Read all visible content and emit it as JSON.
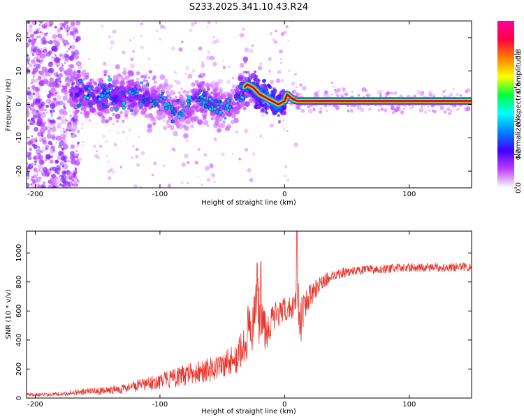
{
  "title": "S233.2025.341.10.43.R24",
  "chart_data": [
    {
      "type": "heatmap",
      "xlabel": "Height of straight line (km)",
      "ylabel": "Frequency (Hz)",
      "xlim": [
        -207,
        150
      ],
      "ylim": [
        -25,
        25
      ],
      "x_ticks": [
        -200,
        -100,
        0,
        100
      ],
      "y_ticks": [
        -20,
        -10,
        0,
        10,
        20
      ],
      "colorbar": {
        "label": "Normalized spectral amplitude",
        "range": [
          0,
          1
        ],
        "ticks": [
          0.0,
          0.2,
          0.4,
          0.6,
          0.8
        ],
        "tick_labels": [
          "0.0",
          "0.2",
          "0.4",
          "0.6",
          "0.8"
        ],
        "colors": [
          "#ffffff",
          "#c040ff",
          "#4000ff",
          "#0080ff",
          "#00ffff",
          "#00ff40",
          "#ffff00",
          "#ff8000",
          "#ff0040",
          "#ff00a0"
        ]
      },
      "ridge_trace": {
        "description": "dominant frequency ridge (Hz) vs height (km)",
        "x": [
          -170,
          -160,
          -150,
          -140,
          -130,
          -120,
          -110,
          -100,
          -90,
          -80,
          -70,
          -60,
          -50,
          -40,
          -35,
          -30,
          -25,
          -20,
          -15,
          -10,
          -5,
          0,
          2,
          5,
          10,
          20,
          40,
          60,
          80,
          100,
          120,
          150
        ],
        "y": [
          4,
          3,
          2,
          3,
          2,
          3,
          2,
          1,
          -1,
          -2,
          2,
          1,
          -1,
          0,
          4,
          6,
          5,
          3,
          2,
          1,
          0,
          1,
          3,
          2,
          1,
          1,
          1,
          1,
          1,
          1,
          1,
          1
        ],
        "amplitude": [
          0.2,
          0.2,
          0.2,
          0.25,
          0.2,
          0.2,
          0.2,
          0.15,
          0.15,
          0.15,
          0.2,
          0.2,
          0.15,
          0.15,
          0.25,
          0.3,
          0.4,
          0.45,
          0.5,
          0.5,
          0.4,
          0.35,
          0.4,
          0.55,
          0.7,
          0.75,
          0.8,
          0.85,
          0.9,
          0.95,
          0.95,
          0.95
        ]
      }
    },
    {
      "type": "line",
      "xlabel": "Height of straight line (km)",
      "ylabel": "SNR (10 * v/v)",
      "xlim": [
        -207,
        150
      ],
      "ylim": [
        0,
        1150
      ],
      "x_ticks": [
        -200,
        -100,
        0,
        100
      ],
      "y_ticks": [
        0,
        200,
        400,
        600,
        800,
        1000
      ],
      "series": [
        {
          "name": "SNR",
          "color": "#e8332a",
          "x": [
            -207,
            -190,
            -175,
            -160,
            -150,
            -140,
            -130,
            -120,
            -110,
            -100,
            -90,
            -80,
            -70,
            -60,
            -50,
            -40,
            -35,
            -30,
            -25,
            -22,
            -20,
            -18,
            -15,
            -12,
            -10,
            -5,
            0,
            5,
            8,
            10,
            12,
            14,
            16,
            20,
            30,
            40,
            50,
            60,
            80,
            100,
            120,
            150
          ],
          "y": [
            20,
            25,
            30,
            40,
            45,
            55,
            65,
            80,
            100,
            120,
            140,
            170,
            200,
            220,
            260,
            320,
            380,
            450,
            520,
            600,
            650,
            550,
            480,
            500,
            540,
            580,
            600,
            620,
            650,
            900,
            520,
            580,
            650,
            700,
            800,
            850,
            870,
            880,
            890,
            900,
            900,
            905
          ],
          "noise_amplitude": [
            15,
            15,
            20,
            30,
            30,
            35,
            40,
            50,
            60,
            70,
            80,
            90,
            100,
            110,
            120,
            140,
            160,
            180,
            200,
            250,
            280,
            200,
            150,
            130,
            120,
            100,
            90,
            90,
            100,
            250,
            200,
            150,
            110,
            80,
            50,
            40,
            35,
            30,
            30,
            30,
            30,
            30
          ],
          "spikes": [
            {
              "x": -22,
              "y": 930
            },
            {
              "x": -19,
              "y": 940
            },
            {
              "x": 10,
              "y": 1150
            }
          ]
        }
      ]
    }
  ]
}
